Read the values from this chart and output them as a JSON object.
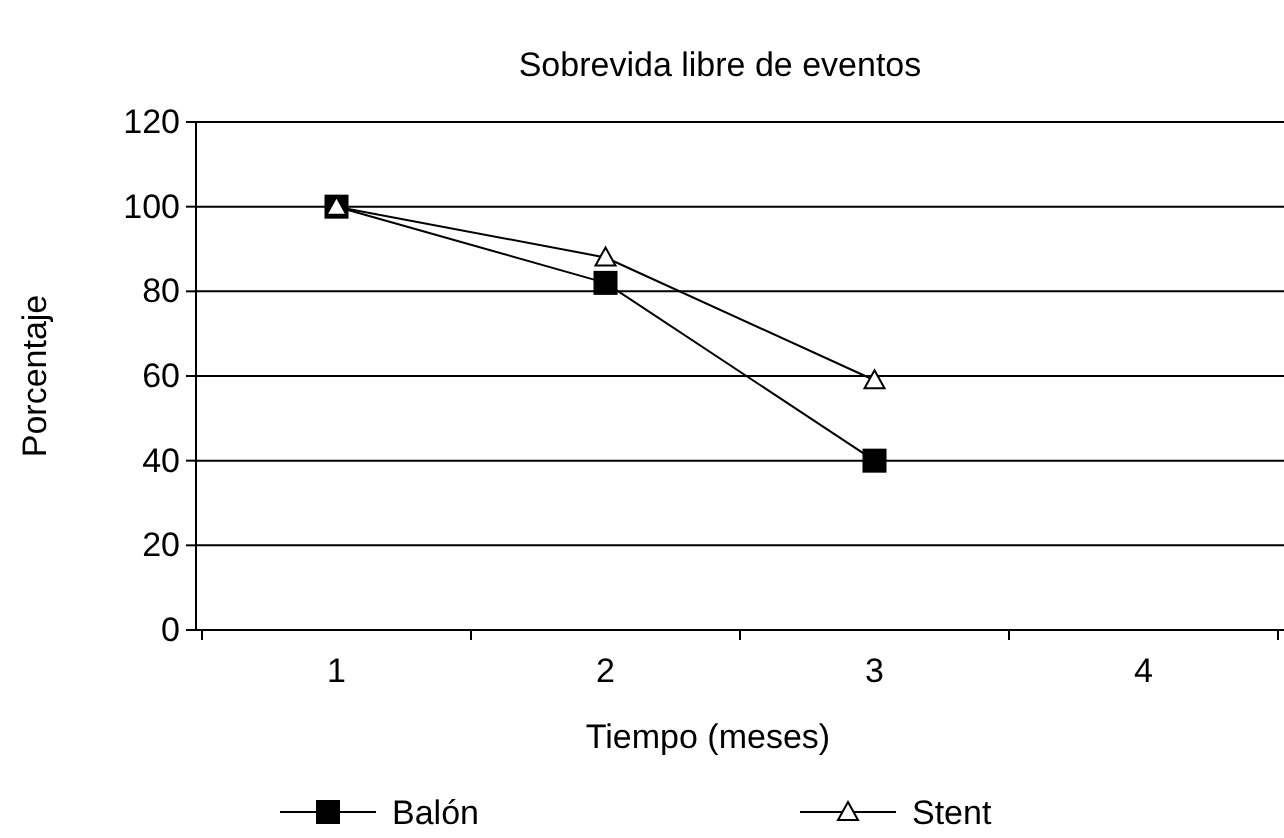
{
  "chart_data": {
    "type": "line",
    "title": "Sobrevida libre de eventos",
    "xlabel": "Tiempo (meses)",
    "ylabel": "Porcentaje",
    "categories": [
      "1",
      "2",
      "3",
      "4"
    ],
    "series": [
      {
        "name": "Balón",
        "color": "#000000",
        "marker": "square",
        "values": [
          100,
          82,
          40,
          null
        ]
      },
      {
        "name": "Stent",
        "color": "#000000",
        "marker": "triangle",
        "values": [
          100,
          88,
          59,
          null
        ]
      }
    ],
    "ylim": [
      0,
      120
    ],
    "yticks": [
      0,
      20,
      40,
      60,
      80,
      100,
      120
    ],
    "grid": "y",
    "legend": "bottom",
    "line_style": "solid"
  }
}
